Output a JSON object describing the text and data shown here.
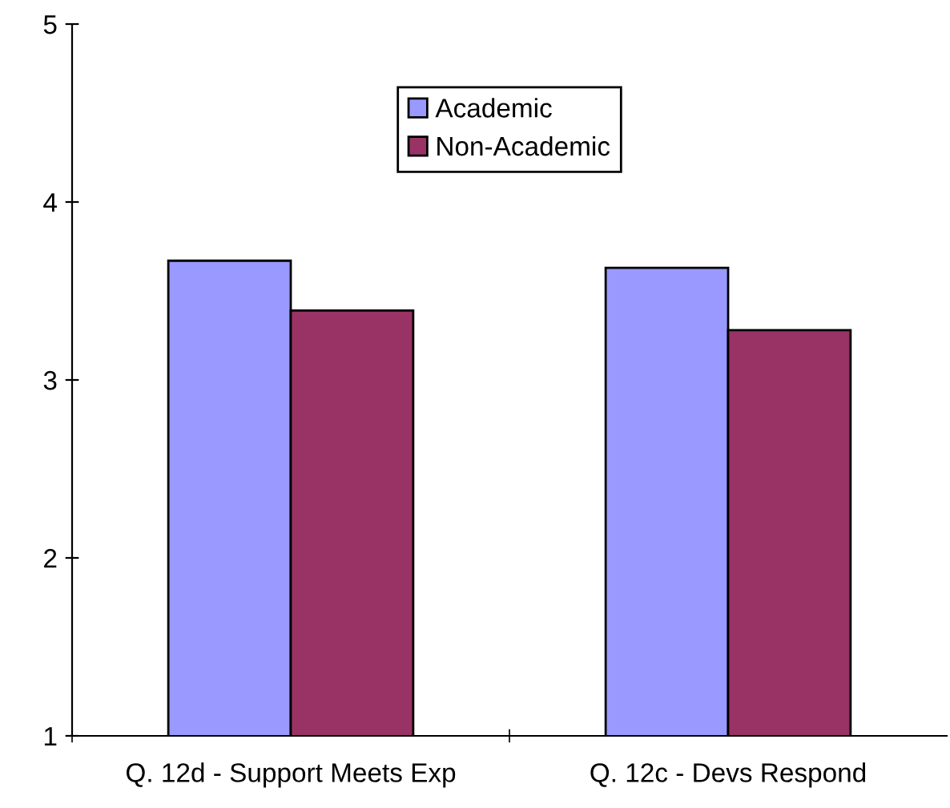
{
  "chart_data": {
    "type": "bar",
    "categories": [
      "Q. 12d - Support Meets Exp",
      "Q. 12c - Devs Respond"
    ],
    "series": [
      {
        "name": "Academic",
        "color": "#9999ff",
        "values": [
          3.67,
          3.63
        ]
      },
      {
        "name": "Non-Academic",
        "color": "#993366",
        "values": [
          3.39,
          3.28
        ]
      }
    ],
    "ylim": [
      1,
      5
    ],
    "yticks": [
      1,
      2,
      3,
      4,
      5
    ],
    "grid": false,
    "legend": "top"
  }
}
